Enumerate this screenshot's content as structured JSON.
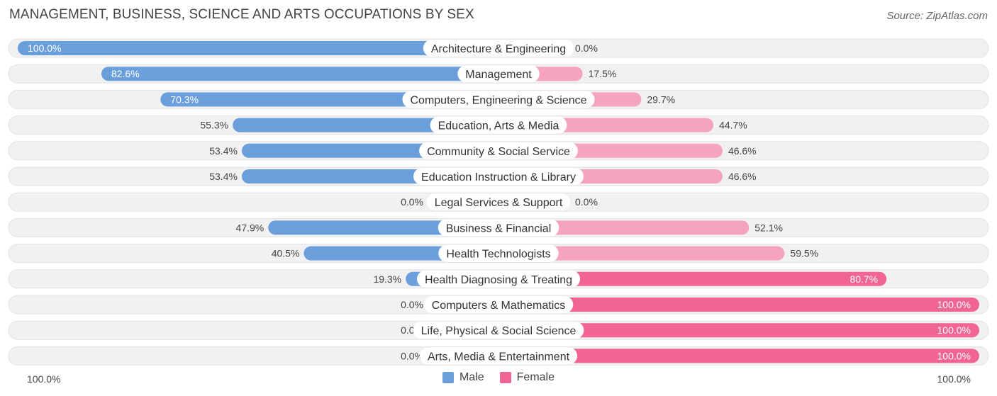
{
  "title": "MANAGEMENT, BUSINESS, SCIENCE AND ARTS OCCUPATIONS BY SEX",
  "source": "Source: ZipAtlas.com",
  "colors": {
    "male": "#6a9fdc",
    "male_light": "#a9c7ec",
    "female": "#f06592",
    "female_light": "#f6a3bf",
    "track": "#ececec"
  },
  "legend": {
    "male": "Male",
    "female": "Female"
  },
  "axis": {
    "left_label": "100.0%",
    "right_label": "100.0%"
  },
  "chart_data": {
    "type": "bar",
    "orientation": "horizontal-diverging",
    "categories": [
      "Architecture & Engineering",
      "Management",
      "Computers, Engineering & Science",
      "Education, Arts & Media",
      "Community & Social Service",
      "Education Instruction & Library",
      "Legal Services & Support",
      "Business & Financial",
      "Health Technologists",
      "Health Diagnosing & Treating",
      "Computers & Mathematics",
      "Life, Physical & Social Science",
      "Arts, Media & Entertainment"
    ],
    "series": [
      {
        "name": "Male",
        "values": [
          100.0,
          82.6,
          70.3,
          55.3,
          53.4,
          53.4,
          0.0,
          47.9,
          40.5,
          19.3,
          0.0,
          0.0,
          0.0
        ],
        "labels": [
          "100.0%",
          "82.6%",
          "70.3%",
          "55.3%",
          "53.4%",
          "53.4%",
          "0.0%",
          "47.9%",
          "40.5%",
          "19.3%",
          "0.0%",
          "0.0%",
          "0.0%"
        ]
      },
      {
        "name": "Female",
        "values": [
          0.0,
          17.5,
          29.7,
          44.7,
          46.6,
          46.6,
          0.0,
          52.1,
          59.5,
          80.7,
          100.0,
          100.0,
          100.0
        ],
        "labels": [
          "0.0%",
          "17.5%",
          "29.7%",
          "44.7%",
          "46.6%",
          "46.6%",
          "0.0%",
          "52.1%",
          "59.5%",
          "80.7%",
          "100.0%",
          "100.0%",
          "100.0%"
        ]
      }
    ],
    "xlim": [
      -100,
      100
    ],
    "legend_position": "bottom-center"
  }
}
